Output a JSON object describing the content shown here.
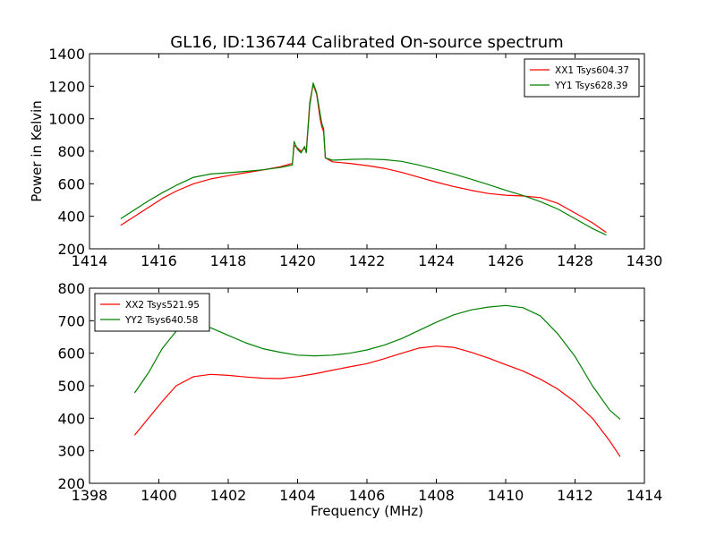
{
  "figure": {
    "title": "GL16, ID:136744 Calibrated On-source spectrum",
    "xlabel": "Frequency (MHz)"
  },
  "chart_data": [
    {
      "type": "line",
      "title": "GL16, ID:136744 Calibrated On-source spectrum",
      "xlabel": "",
      "ylabel": "Power in Kelvin",
      "xlim": [
        1414,
        1430
      ],
      "ylim": [
        200,
        1400
      ],
      "xticks": [
        1414,
        1416,
        1418,
        1420,
        1422,
        1424,
        1426,
        1428,
        1430
      ],
      "yticks": [
        200,
        400,
        600,
        800,
        1000,
        1200,
        1400
      ],
      "grid": false,
      "legend_position": "top-right",
      "series": [
        {
          "name": "XX1 Tsys604.37",
          "color": "#ff0000",
          "points": [
            [
              1414.9,
              345
            ],
            [
              1415.3,
              400
            ],
            [
              1415.7,
              455
            ],
            [
              1416.1,
              510
            ],
            [
              1416.5,
              555
            ],
            [
              1417.0,
              600
            ],
            [
              1417.5,
              630
            ],
            [
              1418.0,
              650
            ],
            [
              1418.5,
              668
            ],
            [
              1419.0,
              685
            ],
            [
              1419.5,
              705
            ],
            [
              1419.85,
              725
            ],
            [
              1419.9,
              835
            ],
            [
              1420.0,
              820
            ],
            [
              1420.1,
              800
            ],
            [
              1420.2,
              820
            ],
            [
              1420.25,
              800
            ],
            [
              1420.35,
              1100
            ],
            [
              1420.45,
              1210
            ],
            [
              1420.55,
              1150
            ],
            [
              1420.65,
              1000
            ],
            [
              1420.7,
              950
            ],
            [
              1420.75,
              920
            ],
            [
              1420.8,
              760
            ],
            [
              1421.0,
              735
            ],
            [
              1421.5,
              725
            ],
            [
              1422.0,
              712
            ],
            [
              1422.5,
              695
            ],
            [
              1423.0,
              670
            ],
            [
              1423.5,
              640
            ],
            [
              1424.0,
              610
            ],
            [
              1424.5,
              583
            ],
            [
              1425.0,
              560
            ],
            [
              1425.5,
              540
            ],
            [
              1426.0,
              530
            ],
            [
              1426.5,
              525
            ],
            [
              1427.0,
              515
            ],
            [
              1427.5,
              480
            ],
            [
              1428.0,
              420
            ],
            [
              1428.5,
              360
            ],
            [
              1428.9,
              300
            ]
          ]
        },
        {
          "name": "YY1 Tsys628.39",
          "color": "#008000",
          "points": [
            [
              1414.9,
              385
            ],
            [
              1415.3,
              440
            ],
            [
              1415.7,
              495
            ],
            [
              1416.1,
              545
            ],
            [
              1416.5,
              590
            ],
            [
              1417.0,
              640
            ],
            [
              1417.5,
              660
            ],
            [
              1418.0,
              668
            ],
            [
              1418.5,
              676
            ],
            [
              1419.0,
              686
            ],
            [
              1419.5,
              700
            ],
            [
              1419.85,
              715
            ],
            [
              1419.9,
              860
            ],
            [
              1420.0,
              810
            ],
            [
              1420.1,
              790
            ],
            [
              1420.2,
              830
            ],
            [
              1420.25,
              790
            ],
            [
              1420.35,
              1080
            ],
            [
              1420.45,
              1220
            ],
            [
              1420.55,
              1160
            ],
            [
              1420.65,
              1030
            ],
            [
              1420.7,
              970
            ],
            [
              1420.75,
              940
            ],
            [
              1420.8,
              760
            ],
            [
              1421.0,
              745
            ],
            [
              1421.5,
              750
            ],
            [
              1422.0,
              752
            ],
            [
              1422.5,
              748
            ],
            [
              1423.0,
              738
            ],
            [
              1423.5,
              715
            ],
            [
              1424.0,
              688
            ],
            [
              1424.5,
              660
            ],
            [
              1425.0,
              628
            ],
            [
              1425.5,
              595
            ],
            [
              1426.0,
              560
            ],
            [
              1426.5,
              528
            ],
            [
              1427.0,
              490
            ],
            [
              1427.5,
              445
            ],
            [
              1428.0,
              385
            ],
            [
              1428.5,
              325
            ],
            [
              1428.9,
              285
            ]
          ]
        }
      ]
    },
    {
      "type": "line",
      "title": "",
      "xlabel": "Frequency (MHz)",
      "ylabel": "",
      "xlim": [
        1398,
        1414
      ],
      "ylim": [
        200,
        800
      ],
      "xticks": [
        1398,
        1400,
        1402,
        1404,
        1406,
        1408,
        1410,
        1412,
        1414
      ],
      "yticks": [
        200,
        300,
        400,
        500,
        600,
        700,
        800
      ],
      "grid": false,
      "legend_position": "top-left",
      "series": [
        {
          "name": "XX2 Tsys521.95",
          "color": "#ff0000",
          "points": [
            [
              1399.3,
              348
            ],
            [
              1399.7,
              400
            ],
            [
              1400.1,
              452
            ],
            [
              1400.5,
              500
            ],
            [
              1401.0,
              528
            ],
            [
              1401.5,
              535
            ],
            [
              1402.0,
              532
            ],
            [
              1402.5,
              527
            ],
            [
              1403.0,
              523
            ],
            [
              1403.5,
              522
            ],
            [
              1404.0,
              528
            ],
            [
              1404.5,
              537
            ],
            [
              1405.0,
              548
            ],
            [
              1405.5,
              558
            ],
            [
              1406.0,
              568
            ],
            [
              1406.5,
              583
            ],
            [
              1407.0,
              600
            ],
            [
              1407.5,
              616
            ],
            [
              1408.0,
              622
            ],
            [
              1408.5,
              618
            ],
            [
              1409.0,
              603
            ],
            [
              1409.5,
              585
            ],
            [
              1410.0,
              565
            ],
            [
              1410.5,
              545
            ],
            [
              1411.0,
              520
            ],
            [
              1411.5,
              490
            ],
            [
              1412.0,
              450
            ],
            [
              1412.5,
              400
            ],
            [
              1413.0,
              330
            ],
            [
              1413.3,
              282
            ]
          ]
        },
        {
          "name": "YY2 Tsys640.58",
          "color": "#008000",
          "points": [
            [
              1399.3,
              478
            ],
            [
              1399.7,
              540
            ],
            [
              1400.1,
              615
            ],
            [
              1400.5,
              668
            ],
            [
              1401.0,
              686
            ],
            [
              1401.5,
              678
            ],
            [
              1402.0,
              655
            ],
            [
              1402.5,
              632
            ],
            [
              1403.0,
              614
            ],
            [
              1403.5,
              603
            ],
            [
              1404.0,
              594
            ],
            [
              1404.5,
              592
            ],
            [
              1405.0,
              594
            ],
            [
              1405.5,
              600
            ],
            [
              1406.0,
              610
            ],
            [
              1406.5,
              625
            ],
            [
              1407.0,
              645
            ],
            [
              1407.5,
              670
            ],
            [
              1408.0,
              695
            ],
            [
              1408.5,
              718
            ],
            [
              1409.0,
              733
            ],
            [
              1409.5,
              742
            ],
            [
              1410.0,
              747
            ],
            [
              1410.5,
              740
            ],
            [
              1411.0,
              715
            ],
            [
              1411.5,
              660
            ],
            [
              1412.0,
              590
            ],
            [
              1412.5,
              500
            ],
            [
              1413.0,
              425
            ],
            [
              1413.3,
              397
            ]
          ]
        }
      ]
    }
  ]
}
